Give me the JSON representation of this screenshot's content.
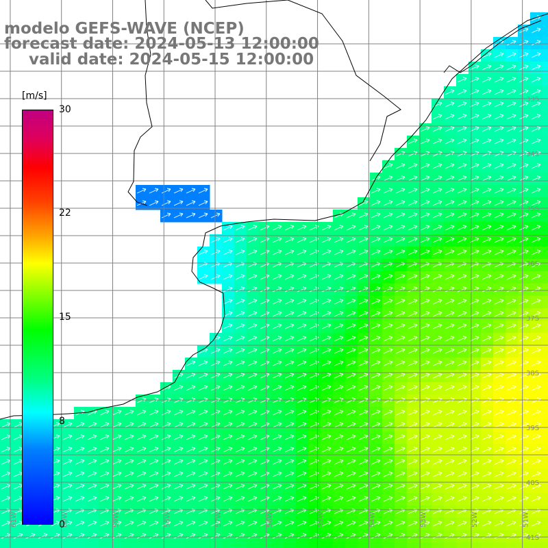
{
  "header": {
    "model_line": "modelo GEFS-WAVE (NCEP)",
    "forecast_line": "forecast date: 2024-05-13 12:00:00",
    "valid_line": "valid date: 2024-05-15 12:00:00"
  },
  "colorbar": {
    "unit": "[m/s]",
    "ticks": [
      "30",
      "22",
      "15",
      "8",
      "0"
    ],
    "tick_values": [
      30,
      22,
      15,
      8,
      0
    ],
    "range": [
      0,
      30
    ],
    "colors": [
      "#0000ff",
      "#0080ff",
      "#00ffff",
      "#00ff00",
      "#ffff00",
      "#ff0000",
      "#c00080"
    ]
  },
  "map": {
    "lat_labels": [
      "33S",
      "34S",
      "35S",
      "36S",
      "37S",
      "38S",
      "39S",
      "40S",
      "41S"
    ],
    "lon_labels": [
      "61W",
      "60W",
      "59W",
      "58W",
      "57W",
      "56W",
      "55W",
      "54W",
      "53W",
      "52W",
      "51W"
    ],
    "land_color": "#ffffff",
    "grid_color": "#808080",
    "arrow_color": "#ffffff"
  },
  "chart_data": {
    "type": "heatmap",
    "title": "modelo GEFS-WAVE (NCEP)",
    "xlabel": "",
    "ylabel": "",
    "quantity_unit": "[m/s]",
    "xlim": [
      -61.2,
      -50.5
    ],
    "ylim": [
      -41.2,
      -31.2
    ],
    "wind_direction": "toward north-east",
    "speed_samples": [
      {
        "lon": -60.5,
        "lat": -40.5,
        "speed": 10
      },
      {
        "lon": -58.0,
        "lat": -40.0,
        "speed": 11
      },
      {
        "lon": -56.0,
        "lat": -39.5,
        "speed": 12
      },
      {
        "lon": -54.5,
        "lat": -39.5,
        "speed": 15
      },
      {
        "lon": -52.5,
        "lat": -39.0,
        "speed": 18
      },
      {
        "lon": -51.0,
        "lat": -38.5,
        "speed": 19
      },
      {
        "lon": -52.5,
        "lat": -37.0,
        "speed": 16
      },
      {
        "lon": -55.5,
        "lat": -36.0,
        "speed": 11
      },
      {
        "lon": -57.5,
        "lat": -36.0,
        "speed": 8
      },
      {
        "lon": -58.5,
        "lat": -34.5,
        "speed": 5
      },
      {
        "lon": -53.5,
        "lat": -34.5,
        "speed": 11
      },
      {
        "lon": -51.5,
        "lat": -33.0,
        "speed": 10
      },
      {
        "lon": -51.0,
        "lat": -31.5,
        "speed": 7
      }
    ]
  }
}
